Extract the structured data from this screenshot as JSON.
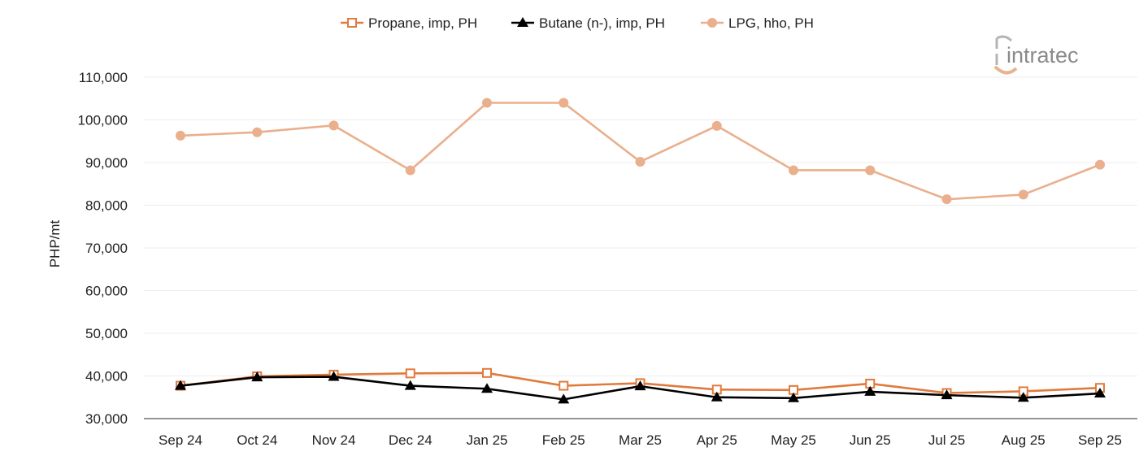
{
  "brand": {
    "name": "intratec"
  },
  "chart_data": {
    "type": "line",
    "categories": [
      "Sep 24",
      "Oct 24",
      "Nov 24",
      "Dec 24",
      "Jan 25",
      "Feb 25",
      "Mar 25",
      "Apr 25",
      "May 25",
      "Jun 25",
      "Jul 25",
      "Aug 25",
      "Sep 25"
    ],
    "ylabel": "PHP/mt",
    "ylim": [
      30000,
      110000
    ],
    "yticks": [
      30000,
      40000,
      50000,
      60000,
      70000,
      80000,
      90000,
      100000,
      110000
    ],
    "ytick_labels": [
      "30,000",
      "40,000",
      "50,000",
      "60,000",
      "70,000",
      "80,000",
      "90,000",
      "100,000",
      "110,000"
    ],
    "grid": true,
    "legend_position": "top-center",
    "series": [
      {
        "name": "Propane, imp, PH",
        "color": "#e07b3e",
        "marker": "open-square",
        "values": [
          37700,
          39900,
          40300,
          40600,
          40700,
          37700,
          38300,
          36800,
          36700,
          38200,
          36000,
          36400,
          37200
        ]
      },
      {
        "name": "Butane (n-), imp, PH",
        "color": "#000000",
        "marker": "filled-triangle",
        "values": [
          37700,
          39700,
          39800,
          37700,
          37000,
          34500,
          37600,
          35000,
          34800,
          36300,
          35500,
          34900,
          35900
        ]
      },
      {
        "name": "LPG, hho, PH",
        "color": "#eaaf8c",
        "marker": "filled-circle",
        "values": [
          96300,
          97100,
          98700,
          88200,
          104000,
          104000,
          90200,
          98600,
          88200,
          88200,
          81400,
          82500,
          89500
        ]
      }
    ]
  }
}
